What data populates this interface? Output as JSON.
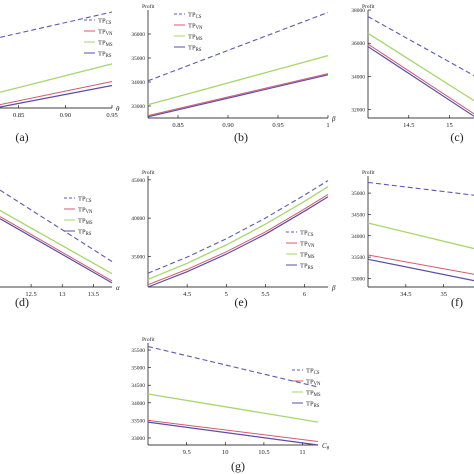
{
  "colors": {
    "cs": "#5a5ab4",
    "vn": "#d45a6e",
    "ms": "#a8d66a",
    "rs": "#5b4ea8",
    "axis": "#000000"
  },
  "chart_data": [
    {
      "panel": "(a)",
      "type": "line",
      "xlabel": "θ",
      "ylabel": "",
      "xlim": [
        0.83,
        0.95
      ],
      "ylim": [
        0,
        10
      ],
      "xticks": [
        0.85,
        0.9,
        0.95
      ],
      "yticks": [],
      "legend": "right",
      "series": [
        {
          "name": "CS",
          "x": [
            0.83,
            0.95
          ],
          "y": [
            7.2,
            9.8
          ]
        },
        {
          "name": "VN",
          "x": [
            0.83,
            0.95
          ],
          "y": [
            0.35,
            2.7
          ]
        },
        {
          "name": "MS",
          "x": [
            0.83,
            0.95
          ],
          "y": [
            1.6,
            4.5
          ]
        },
        {
          "name": "RS",
          "x": [
            0.83,
            0.95
          ],
          "y": [
            0.1,
            2.3
          ]
        }
      ]
    },
    {
      "panel": "(b)",
      "type": "line",
      "xlabel": "β",
      "ylabel": "Profit",
      "xlim": [
        0.82,
        1.0
      ],
      "ylim": [
        32500,
        37000
      ],
      "xticks": [
        0.85,
        0.9,
        0.95,
        1.0
      ],
      "yticks": [
        33000,
        34000,
        35000,
        36000
      ],
      "legend": "top-center",
      "series": [
        {
          "name": "CS",
          "x": [
            0.82,
            1.0
          ],
          "y": [
            34050,
            36900
          ]
        },
        {
          "name": "VN",
          "x": [
            0.82,
            1.0
          ],
          "y": [
            32600,
            34350
          ]
        },
        {
          "name": "MS",
          "x": [
            0.82,
            1.0
          ],
          "y": [
            33050,
            35100
          ]
        },
        {
          "name": "RS",
          "x": [
            0.82,
            1.0
          ],
          "y": [
            32550,
            34300
          ]
        }
      ]
    },
    {
      "panel": "(c)",
      "type": "line",
      "xlabel": "",
      "ylabel": "Profit",
      "xlim": [
        14.0,
        15.3
      ],
      "ylim": [
        31500,
        38000
      ],
      "xticks": [
        14.5,
        15.0
      ],
      "yticks": [
        32000,
        34000,
        36000,
        38000
      ],
      "legend": "none",
      "series": [
        {
          "name": "CS",
          "x": [
            14.0,
            15.3
          ],
          "y": [
            37600,
            34050
          ]
        },
        {
          "name": "VN",
          "x": [
            14.0,
            15.3
          ],
          "y": [
            35950,
            31750
          ]
        },
        {
          "name": "MS",
          "x": [
            14.0,
            15.3
          ],
          "y": [
            36600,
            32550
          ]
        },
        {
          "name": "RS",
          "x": [
            14.0,
            15.3
          ],
          "y": [
            35800,
            31600
          ]
        }
      ]
    },
    {
      "panel": "(d)",
      "type": "line",
      "xlabel": "α",
      "ylabel": "",
      "xlim": [
        12.0,
        13.8
      ],
      "ylim": [
        0,
        10
      ],
      "xticks": [
        12.5,
        13.0,
        13.5
      ],
      "yticks": [],
      "legend": "top-right",
      "series": [
        {
          "name": "CS",
          "x": [
            12.0,
            13.8
          ],
          "y": [
            9.5,
            2.5
          ]
        },
        {
          "name": "VN",
          "x": [
            12.0,
            13.8
          ],
          "y": [
            6.9,
            0.6
          ]
        },
        {
          "name": "MS",
          "x": [
            12.0,
            13.8
          ],
          "y": [
            7.5,
            1.3
          ]
        },
        {
          "name": "RS",
          "x": [
            12.0,
            13.8
          ],
          "y": [
            6.7,
            0.4
          ]
        }
      ]
    },
    {
      "panel": "(e)",
      "type": "line",
      "xlabel": "β",
      "ylabel": "Profit",
      "xlim": [
        4.0,
        6.3
      ],
      "ylim": [
        31000,
        45500
      ],
      "xticks": [
        4.5,
        5.0,
        5.5,
        6.0
      ],
      "yticks": [
        35000,
        40000,
        45000
      ],
      "legend": "right",
      "series": [
        {
          "name": "CS",
          "x": [
            4.0,
            4.5,
            5.0,
            5.5,
            6.0,
            6.3
          ],
          "y": [
            32800,
            34900,
            37300,
            40000,
            43000,
            44900
          ]
        },
        {
          "name": "VN",
          "x": [
            4.0,
            4.5,
            5.0,
            5.5,
            6.0,
            6.3
          ],
          "y": [
            31300,
            33300,
            35600,
            38200,
            41200,
            43100
          ]
        },
        {
          "name": "MS",
          "x": [
            4.0,
            4.5,
            5.0,
            5.5,
            6.0,
            6.3
          ],
          "y": [
            32000,
            34100,
            36500,
            39200,
            42200,
            44100
          ]
        },
        {
          "name": "RS",
          "x": [
            4.0,
            4.5,
            5.0,
            5.5,
            6.0,
            6.3
          ],
          "y": [
            31000,
            33000,
            35300,
            37900,
            40900,
            42800
          ]
        }
      ]
    },
    {
      "panel": "(f)",
      "type": "line",
      "xlabel": "",
      "ylabel": "Profit",
      "xlim": [
        34.0,
        35.4
      ],
      "ylim": [
        32800,
        35400
      ],
      "xticks": [
        34.5,
        35.0
      ],
      "yticks": [
        33000,
        33500,
        34000,
        34500,
        35000
      ],
      "legend": "none",
      "series": [
        {
          "name": "CS",
          "x": [
            34.0,
            35.4
          ],
          "y": [
            35250,
            34950
          ]
        },
        {
          "name": "VN",
          "x": [
            34.0,
            35.4
          ],
          "y": [
            33550,
            33100
          ]
        },
        {
          "name": "MS",
          "x": [
            34.0,
            35.4
          ],
          "y": [
            34300,
            33700
          ]
        },
        {
          "name": "RS",
          "x": [
            34.0,
            35.4
          ],
          "y": [
            33450,
            32950
          ]
        }
      ]
    },
    {
      "panel": "(g)",
      "type": "line",
      "xlabel": "Cθ",
      "ylabel": "Profit",
      "xlim": [
        9.0,
        11.2
      ],
      "ylim": [
        32800,
        35700
      ],
      "xticks": [
        9.5,
        10.0,
        10.5,
        11.0
      ],
      "yticks": [
        33000,
        33500,
        34000,
        34500,
        35000,
        35500
      ],
      "legend": "right",
      "series": [
        {
          "name": "CS",
          "x": [
            9.0,
            11.2
          ],
          "y": [
            35600,
            34450
          ]
        },
        {
          "name": "VN",
          "x": [
            9.0,
            11.2
          ],
          "y": [
            33500,
            32900
          ]
        },
        {
          "name": "MS",
          "x": [
            9.0,
            11.2
          ],
          "y": [
            34250,
            33450
          ]
        },
        {
          "name": "RS",
          "x": [
            9.0,
            11.2
          ],
          "y": [
            33450,
            32800
          ]
        }
      ]
    }
  ]
}
